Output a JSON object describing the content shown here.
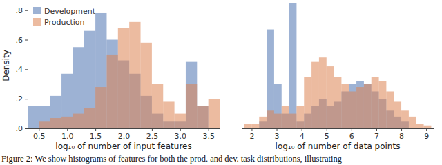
{
  "chart_data": [
    {
      "type": "histogram",
      "x_label": "log₁₀ of number of input features",
      "y_label": "Density",
      "bins": [
        0.3,
        0.5,
        0.7,
        0.9,
        1.1,
        1.3,
        1.5,
        1.7,
        1.9,
        2.1,
        2.3,
        2.5,
        2.7,
        2.9,
        3.1,
        3.3,
        3.5,
        3.7
      ],
      "series": [
        {
          "name": "Development",
          "color": "#4c72b0",
          "values": [
            0.15,
            0.15,
            0.22,
            0.37,
            0.55,
            0.66,
            0.78,
            0.6,
            0.46,
            0.37,
            0.22,
            0.1,
            0.05,
            0.05,
            0.45,
            0.15,
            0
          ]
        },
        {
          "name": "Production",
          "color": "#dd8452",
          "values": [
            0,
            0.05,
            0.07,
            0.08,
            0.1,
            0.14,
            0.28,
            0.5,
            0.68,
            0.72,
            0.58,
            0.3,
            0.18,
            0.1,
            0.3,
            0.15,
            0.2
          ]
        }
      ],
      "xlim": [
        0.3,
        3.7
      ],
      "xticks": [
        0.5,
        {
          "value": 1,
          "label": "1.0"
        },
        1.5,
        {
          "value": 2,
          "label": "2.0"
        },
        2.5,
        {
          "value": 3,
          "label": "3.0"
        },
        3.5
      ],
      "ylim": [
        0,
        0.85
      ],
      "yticks": [
        {
          "value": 0,
          "label": ".0"
        },
        {
          "value": 0.2,
          "label": ".2"
        },
        {
          "value": 0.4,
          "label": ".4"
        },
        {
          "value": 0.6,
          "label": ".6"
        },
        {
          "value": 0.8,
          "label": ".8"
        }
      ],
      "legend": "upper left",
      "grid": false
    },
    {
      "type": "histogram",
      "x_label": "log₁₀ of number of data points",
      "bins": [
        1.7,
        2.0,
        2.3,
        2.6,
        2.9,
        3.2,
        3.5,
        3.8,
        4.1,
        4.4,
        4.7,
        5.0,
        5.3,
        5.6,
        5.9,
        6.2,
        6.5,
        6.8,
        7.1,
        7.4,
        7.7,
        8.0,
        8.3,
        8.6,
        8.9,
        9.2
      ],
      "series": [
        {
          "name": "Development",
          "color": "#4c72b0",
          "values": [
            0,
            0,
            0.05,
            0.67,
            0.3,
            0.1,
            0.85,
            0.05,
            0.1,
            0.15,
            0.2,
            0.15,
            0.18,
            0.25,
            0.3,
            0.32,
            0.3,
            0.25,
            0.2,
            0.12,
            0.08,
            0.05,
            0,
            0,
            0
          ]
        },
        {
          "name": "Production",
          "color": "#dd8452",
          "values": [
            0.03,
            0.03,
            0.08,
            0.12,
            0.1,
            0.15,
            0.1,
            0.15,
            0.35,
            0.45,
            0.48,
            0.42,
            0.35,
            0.3,
            0.25,
            0.28,
            0.3,
            0.35,
            0.32,
            0.25,
            0.18,
            0.12,
            0.08,
            0.03,
            0.02
          ]
        }
      ],
      "xlim": [
        1.6,
        9.3
      ],
      "xticks": [
        2,
        3,
        4,
        5,
        6,
        7,
        8,
        9
      ],
      "ylim": [
        0,
        0.85
      ],
      "tick_labels": "x",
      "grid": false
    }
  ],
  "caption": "Figure 2: We show histograms of features for both the prod. and dev. task distributions, illustrating"
}
